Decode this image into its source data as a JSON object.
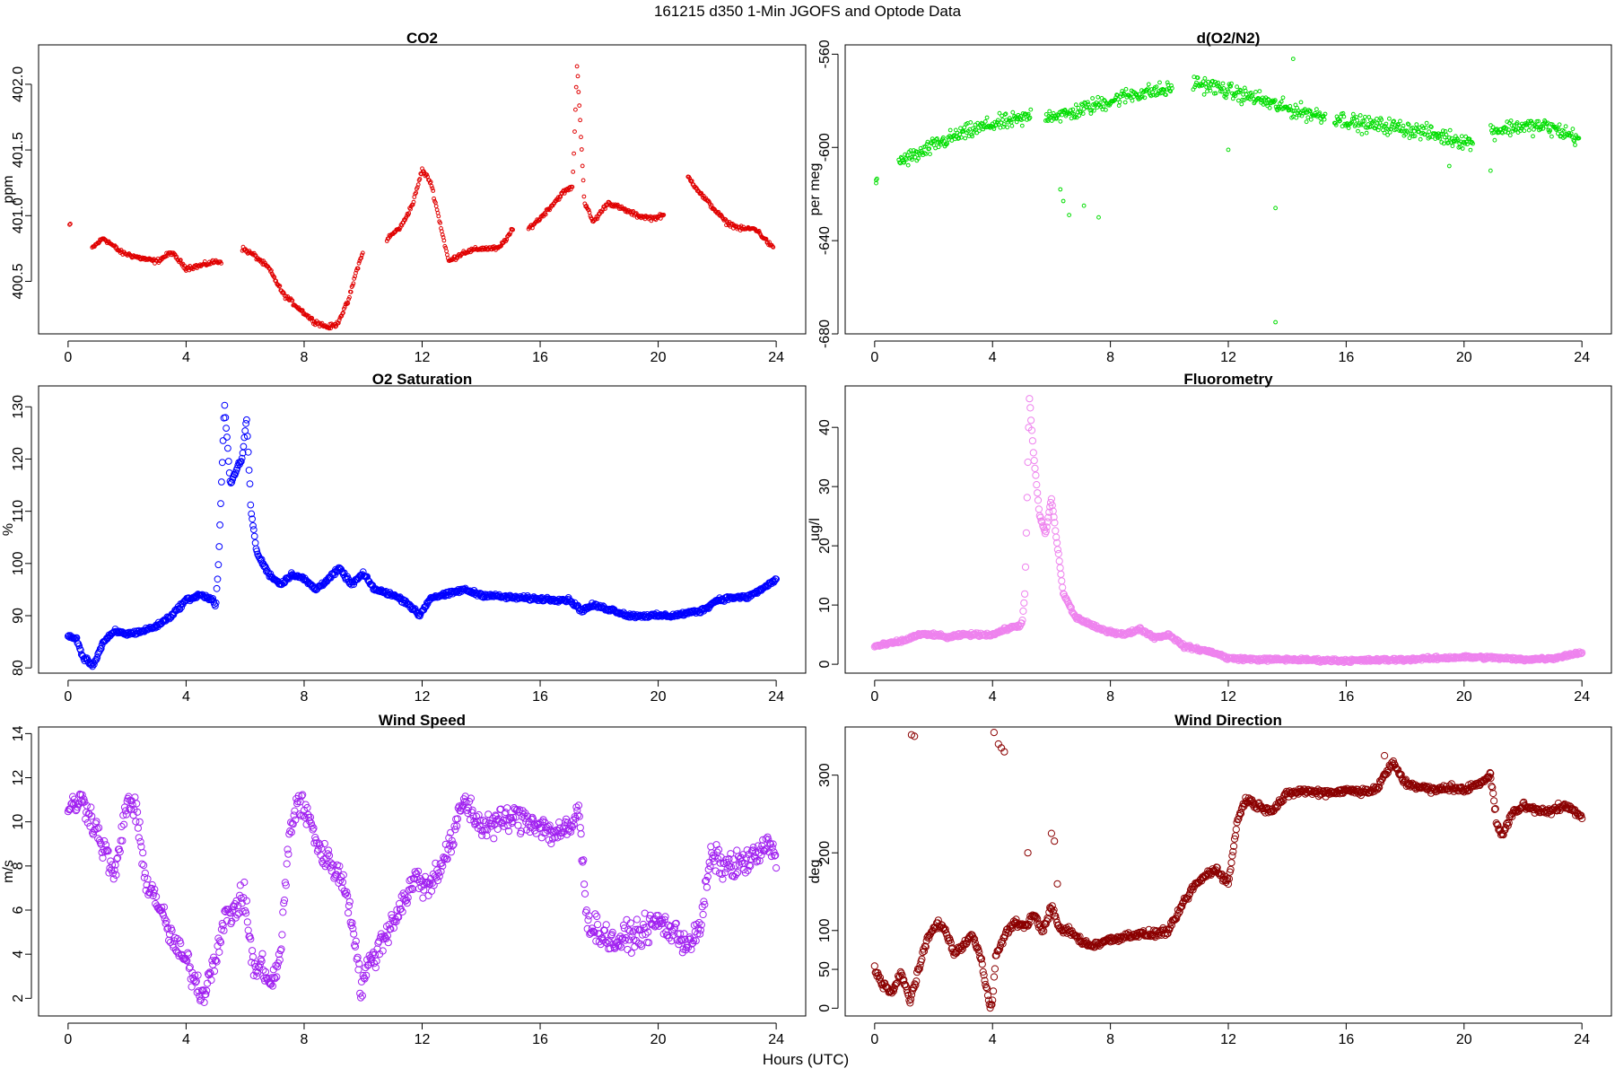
{
  "figure": {
    "title": "161215   d350   1-Min  JGOFS and Optode Data",
    "xlabel": "Hours (UTC)"
  },
  "chart_data": [
    {
      "id": "co2",
      "type": "scatter",
      "title": "CO2",
      "ylabel": "ppm",
      "color": "#e00000",
      "xlim": [
        -1,
        25
      ],
      "ylim": [
        400.1,
        402.3
      ],
      "xticks": [
        0,
        4,
        8,
        12,
        16,
        20,
        24
      ],
      "yticks": [
        400.5,
        401.0,
        401.5,
        402.0
      ],
      "ytick_labels": [
        "400.5",
        "401.0",
        "401.5",
        "402.0"
      ],
      "gaps": [
        [
          0.1,
          0.8
        ],
        [
          5.2,
          5.9
        ],
        [
          10.0,
          10.8
        ],
        [
          15.1,
          15.6
        ],
        [
          20.2,
          21.0
        ]
      ],
      "jitter": 0.025,
      "x": [
        0.05,
        0.8,
        1.2,
        1.8,
        2.4,
        3.0,
        3.5,
        4.0,
        4.5,
        5.0,
        5.2,
        5.9,
        6.3,
        6.8,
        7.3,
        7.8,
        8.3,
        8.8,
        9.1,
        9.5,
        9.8,
        10.0,
        10.8,
        11.3,
        11.7,
        12.0,
        12.3,
        12.6,
        12.9,
        13.4,
        14.0,
        14.6,
        15.1,
        15.6,
        16.0,
        16.4,
        16.8,
        17.1,
        17.25,
        17.35,
        17.5,
        17.8,
        18.3,
        18.8,
        19.3,
        19.8,
        20.2,
        21.0,
        21.5,
        21.9,
        22.3,
        22.8,
        23.3,
        23.9
      ],
      "y": [
        400.93,
        400.75,
        400.83,
        400.72,
        400.68,
        400.65,
        400.72,
        400.6,
        400.62,
        400.65,
        400.65,
        400.75,
        400.7,
        400.6,
        400.4,
        400.3,
        400.2,
        400.15,
        400.17,
        400.35,
        400.6,
        400.72,
        400.82,
        400.92,
        401.1,
        401.35,
        401.25,
        400.95,
        400.65,
        400.72,
        400.75,
        400.75,
        400.9,
        400.9,
        400.98,
        401.08,
        401.18,
        401.22,
        402.15,
        401.75,
        401.1,
        400.95,
        401.1,
        401.05,
        401.0,
        400.98,
        401.0,
        401.3,
        401.15,
        401.05,
        400.95,
        400.9,
        400.9,
        400.75
      ]
    },
    {
      "id": "o2n2",
      "type": "scatter",
      "title": "d(O2/N2)",
      "ylabel": "per meg",
      "color": "#00dd00",
      "xlim": [
        -1,
        25
      ],
      "ylim": [
        -680,
        -556
      ],
      "xticks": [
        0,
        4,
        8,
        12,
        16,
        20,
        24
      ],
      "yticks": [
        -680,
        -640,
        -600,
        -560
      ],
      "ytick_labels": [
        "-680",
        "-640",
        "-600",
        "-560"
      ],
      "gaps": [
        [
          0.1,
          0.8
        ],
        [
          5.3,
          5.8
        ],
        [
          10.1,
          10.8
        ],
        [
          15.3,
          15.6
        ],
        [
          20.3,
          20.9
        ]
      ],
      "jitter": 5,
      "x": [
        0.05,
        0.8,
        1.5,
        2.2,
        3.0,
        4.0,
        5.0,
        5.3,
        5.8,
        6.5,
        7.2,
        8.0,
        8.8,
        9.5,
        10.1,
        10.8,
        11.5,
        12.3,
        13.0,
        13.6,
        14.2,
        15.0,
        15.3,
        15.6,
        16.5,
        17.5,
        18.5,
        19.5,
        20.3,
        20.9,
        21.8,
        22.8,
        23.9
      ],
      "y": [
        -614,
        -606,
        -603,
        -598,
        -594,
        -590,
        -588,
        -586,
        -586,
        -586,
        -583,
        -580,
        -577,
        -576,
        -575,
        -572,
        -574,
        -577,
        -579,
        -582,
        -584,
        -586,
        -587,
        -587,
        -590,
        -591,
        -593,
        -596,
        -598,
        -593,
        -591,
        -591,
        -596
      ],
      "outliers": [
        [
          0.05,
          -614
        ],
        [
          6.3,
          -618
        ],
        [
          6.4,
          -623
        ],
        [
          7.1,
          -625
        ],
        [
          7.6,
          -630
        ],
        [
          6.6,
          -629
        ],
        [
          13.6,
          -626
        ],
        [
          13.6,
          -675
        ],
        [
          20.9,
          -610
        ],
        [
          19.5,
          -608
        ],
        [
          12.0,
          -601
        ],
        [
          14.2,
          -562
        ]
      ]
    },
    {
      "id": "o2sat",
      "type": "scatter",
      "title": "O2 Saturation",
      "ylabel": "%",
      "color": "#0000ff",
      "xlim": [
        -1,
        25
      ],
      "ylim": [
        79,
        134
      ],
      "xticks": [
        0,
        4,
        8,
        12,
        16,
        20,
        24
      ],
      "yticks": [
        80,
        90,
        100,
        110,
        120,
        130
      ],
      "ytick_labels": [
        "80",
        "90",
        "100",
        "110",
        "120",
        "130"
      ],
      "gaps": [],
      "jitter": 0.6,
      "x": [
        0.0,
        0.3,
        0.5,
        0.85,
        1.2,
        1.6,
        2.0,
        2.5,
        3.0,
        3.5,
        4.0,
        4.5,
        4.9,
        5.0,
        5.1,
        5.3,
        5.5,
        5.7,
        5.9,
        6.05,
        6.2,
        6.4,
        6.8,
        7.2,
        7.6,
        8.0,
        8.4,
        8.8,
        9.2,
        9.6,
        10.0,
        10.4,
        11.0,
        11.5,
        11.9,
        12.3,
        12.8,
        13.4,
        14.0,
        15.0,
        16.0,
        17.0,
        17.4,
        17.8,
        18.5,
        19.0,
        19.5,
        20.0,
        20.5,
        21.0,
        21.5,
        22.0,
        22.5,
        23.0,
        23.5,
        24.0
      ],
      "y": [
        86,
        85.5,
        82,
        80.5,
        85,
        87,
        86.5,
        87,
        88,
        90,
        93,
        94,
        93,
        91.5,
        100,
        131,
        115,
        118,
        120,
        128,
        110,
        102,
        98,
        96,
        98,
        97,
        95,
        97,
        99,
        96,
        98,
        95,
        94,
        92.5,
        90,
        93.5,
        94,
        95,
        94,
        93.5,
        93.2,
        93,
        91,
        92,
        91,
        90,
        90,
        90,
        90,
        90.5,
        91,
        93,
        93.5,
        93.5,
        95,
        97
      ]
    },
    {
      "id": "fluor",
      "type": "scatter",
      "title": "Fluorometry",
      "ylabel": "ug/l",
      "color": "#ee82ee",
      "xlim": [
        -1,
        25
      ],
      "ylim": [
        -1.5,
        47
      ],
      "xticks": [
        0,
        4,
        8,
        12,
        16,
        20,
        24
      ],
      "yticks": [
        0,
        10,
        20,
        30,
        40
      ],
      "ytick_labels": [
        "0",
        "10",
        "20",
        "30",
        "40"
      ],
      "gaps": [],
      "jitter": 0.4,
      "x": [
        0.0,
        0.5,
        1.0,
        1.5,
        2.0,
        2.5,
        3.0,
        3.5,
        4.0,
        4.5,
        4.9,
        5.0,
        5.1,
        5.25,
        5.4,
        5.6,
        5.8,
        6.0,
        6.2,
        6.4,
        6.8,
        7.2,
        7.6,
        8.0,
        8.5,
        9.0,
        9.5,
        10.0,
        10.5,
        11.0,
        11.5,
        12.0,
        13.0,
        14.0,
        15.0,
        16.0,
        17.0,
        18.0,
        19.0,
        20.0,
        21.0,
        22.0,
        23.0,
        24.0
      ],
      "y": [
        3,
        3.5,
        4,
        5,
        5,
        4.5,
        5,
        5,
        5,
        6,
        6.5,
        7,
        12,
        45,
        35,
        25,
        22,
        28,
        20,
        12,
        8,
        7,
        6,
        5.5,
        5,
        6,
        4.5,
        5,
        3,
        2.5,
        2,
        1,
        0.8,
        0.8,
        0.7,
        0.6,
        0.7,
        0.8,
        1,
        1.2,
        1.1,
        0.8,
        1,
        2
      ]
    },
    {
      "id": "wspd",
      "type": "scatter",
      "title": "Wind Speed",
      "ylabel": "m/s",
      "color": "#a020f0",
      "xlim": [
        -1,
        25
      ],
      "ylim": [
        1.2,
        14.3
      ],
      "xticks": [
        0,
        4,
        8,
        12,
        16,
        20,
        24
      ],
      "yticks": [
        2,
        4,
        6,
        8,
        10,
        12,
        14
      ],
      "ytick_labels": [
        "2",
        "4",
        "6",
        "8",
        "10",
        "12",
        "14"
      ],
      "gaps": [],
      "jitter": 0.9,
      "x": [
        0.0,
        0.4,
        0.7,
        1.0,
        1.3,
        1.6,
        2.0,
        2.3,
        2.6,
        3.0,
        3.4,
        3.8,
        4.1,
        4.4,
        4.6,
        5.0,
        5.3,
        5.7,
        6.0,
        6.3,
        6.6,
        6.9,
        7.2,
        7.5,
        7.8,
        8.2,
        8.6,
        9.0,
        9.4,
        9.7,
        9.9,
        10.2,
        10.6,
        11.0,
        11.4,
        11.8,
        12.2,
        12.6,
        13.0,
        13.4,
        14.0,
        14.6,
        15.2,
        15.8,
        16.4,
        17.0,
        17.3,
        17.6,
        18.0,
        18.5,
        19.0,
        19.5,
        20.0,
        20.5,
        21.0,
        21.4,
        21.8,
        22.2,
        22.6,
        23.0,
        23.4,
        23.8,
        24.0
      ],
      "y": [
        10.5,
        11,
        10.5,
        9.5,
        8.5,
        7.5,
        11,
        10.5,
        7.5,
        6.5,
        5,
        4,
        3.5,
        2.5,
        2.2,
        4,
        5.5,
        6.2,
        6.5,
        3.2,
        3.5,
        2.5,
        4,
        9.5,
        11,
        10,
        8.5,
        8,
        7,
        5,
        2.5,
        3.5,
        4.5,
        5.5,
        6.5,
        7.5,
        7,
        8,
        9,
        11,
        9.8,
        10,
        10.2,
        10,
        9.5,
        9.6,
        10.6,
        5.5,
        5,
        4.5,
        4.8,
        5,
        5.5,
        5,
        4.5,
        5,
        8.5,
        8,
        8,
        8.2,
        8.5,
        9,
        8.3
      ]
    },
    {
      "id": "wdir",
      "type": "scatter",
      "title": "Wind Direction",
      "ylabel": "deg",
      "color": "#8b0000",
      "xlim": [
        -1,
        25
      ],
      "ylim": [
        -10,
        362
      ],
      "xticks": [
        0,
        4,
        8,
        12,
        16,
        20,
        24
      ],
      "yticks": [
        0,
        50,
        100,
        200,
        300
      ],
      "ytick_labels": [
        "0",
        "50",
        "100",
        "200",
        "300"
      ],
      "gaps": [],
      "jitter": 7,
      "x": [
        0.0,
        0.3,
        0.6,
        0.9,
        1.2,
        1.5,
        1.8,
        2.1,
        2.4,
        2.7,
        3.0,
        3.3,
        3.6,
        3.9,
        4.0,
        4.1,
        4.5,
        4.8,
        5.1,
        5.4,
        5.7,
        6.0,
        6.3,
        6.6,
        6.9,
        7.3,
        7.7,
        8.2,
        8.8,
        9.4,
        10.0,
        10.4,
        10.8,
        11.2,
        11.6,
        12.0,
        12.3,
        12.6,
        13.0,
        13.5,
        14.0,
        14.5,
        15.0,
        15.5,
        16.0,
        16.5,
        17.0,
        17.3,
        17.6,
        18.0,
        18.5,
        19.0,
        19.5,
        20.0,
        20.5,
        20.9,
        21.1,
        21.3,
        21.6,
        22.0,
        22.5,
        23.0,
        23.5,
        24.0
      ],
      "y": [
        50,
        30,
        20,
        45,
        10,
        50,
        90,
        110,
        100,
        70,
        80,
        95,
        65,
        5,
        10,
        65,
        100,
        110,
        105,
        120,
        100,
        130,
        100,
        100,
        90,
        80,
        85,
        90,
        95,
        95,
        100,
        130,
        155,
        170,
        180,
        160,
        240,
        270,
        260,
        255,
        275,
        280,
        278,
        278,
        280,
        280,
        280,
        300,
        315,
        290,
        285,
        280,
        285,
        280,
        290,
        300,
        240,
        220,
        250,
        260,
        255,
        255,
        260,
        245
      ],
      "outliers": [
        [
          1.25,
          352
        ],
        [
          1.35,
          350
        ],
        [
          4.05,
          355
        ],
        [
          4.2,
          340
        ],
        [
          4.4,
          330
        ],
        [
          4.3,
          335
        ],
        [
          5.2,
          200
        ],
        [
          6.0,
          225
        ],
        [
          6.1,
          215
        ],
        [
          6.2,
          160
        ],
        [
          17.3,
          325
        ],
        [
          20.9,
          302
        ]
      ]
    }
  ]
}
